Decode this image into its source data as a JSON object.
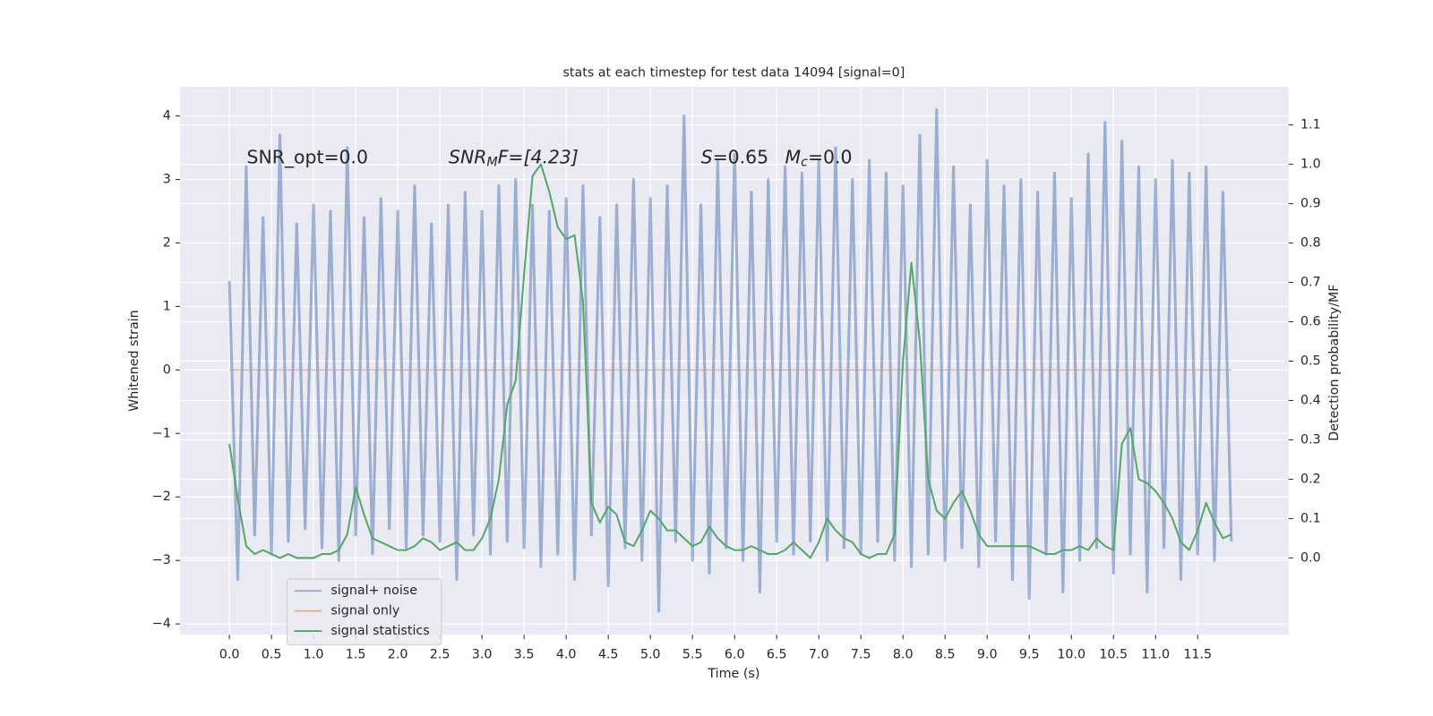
{
  "chart_data": {
    "type": "line",
    "title": "stats at each timestep for test data 14094 [signal=0]",
    "x_label": "Time (s)",
    "y_label": "Whitened strain",
    "y2_label": "Detection probability/MF",
    "annotations": [
      {
        "text": "SNR_opt=0.0"
      },
      {
        "base": "SNR",
        "sub": "M",
        "rest": "F=[4.23]"
      },
      {
        "base": "S",
        "rest": "=0.65"
      },
      {
        "base": "M",
        "sub": "c",
        "rest": "=0.0"
      }
    ],
    "grid": true,
    "legend": "lower left",
    "xlim": [
      -0.586,
      12.58
    ],
    "ylim": [
      -4.17,
      4.46
    ],
    "y2lim": [
      -0.195,
      1.197
    ],
    "xticks": [
      {
        "value": 0,
        "label": "0.0"
      },
      {
        "value": 0.5,
        "label": "0.5"
      },
      {
        "value": 1,
        "label": "1.0"
      },
      {
        "value": 1.5,
        "label": "1.5"
      },
      {
        "value": 2,
        "label": "2.0"
      },
      {
        "value": 2.5,
        "label": "2.5"
      },
      {
        "value": 3,
        "label": "3.0"
      },
      {
        "value": 3.5,
        "label": "3.5"
      },
      {
        "value": 4,
        "label": "4.0"
      },
      {
        "value": 4.5,
        "label": "4.5"
      },
      {
        "value": 5,
        "label": "5.0"
      },
      {
        "value": 5.5,
        "label": "5.5"
      },
      {
        "value": 6,
        "label": "6.0"
      },
      {
        "value": 6.5,
        "label": "6.5"
      },
      {
        "value": 7,
        "label": "7.0"
      },
      {
        "value": 7.5,
        "label": "7.5"
      },
      {
        "value": 8,
        "label": "8.0"
      },
      {
        "value": 8.5,
        "label": "8.5"
      },
      {
        "value": 9,
        "label": "9.0"
      },
      {
        "value": 9.5,
        "label": "9.5"
      },
      {
        "value": 10,
        "label": "10.0"
      },
      {
        "value": 10.5,
        "label": "10.5"
      },
      {
        "value": 11,
        "label": "11.0"
      },
      {
        "value": 11.5,
        "label": "11.5"
      }
    ],
    "yticks": [
      {
        "value": -4,
        "label": "−4"
      },
      {
        "value": -3,
        "label": "−3"
      },
      {
        "value": -2,
        "label": "−2"
      },
      {
        "value": -1,
        "label": "−1"
      },
      0,
      1,
      2,
      3,
      4
    ],
    "y2ticks": [
      {
        "value": 0,
        "label": "0.0"
      },
      {
        "value": 0.1,
        "label": "0.1"
      },
      {
        "value": 0.2,
        "label": "0.2"
      },
      {
        "value": 0.3,
        "label": "0.3"
      },
      {
        "value": 0.4,
        "label": "0.4"
      },
      {
        "value": 0.5,
        "label": "0.5"
      },
      {
        "value": 0.6,
        "label": "0.6"
      },
      {
        "value": 0.7,
        "label": "0.7"
      },
      {
        "value": 0.8,
        "label": "0.8"
      },
      {
        "value": 0.9,
        "label": "0.9"
      },
      {
        "value": 1,
        "label": "1.0"
      },
      {
        "value": 1.1,
        "label": "1.1"
      }
    ],
    "x": [
      0,
      0.1,
      0.2,
      0.3,
      0.4,
      0.5,
      0.6,
      0.7,
      0.8,
      0.9,
      1,
      1.1,
      1.2,
      1.3,
      1.4,
      1.5,
      1.6,
      1.7,
      1.8,
      1.9,
      2,
      2.1,
      2.2,
      2.3,
      2.4,
      2.5,
      2.6,
      2.7,
      2.8,
      2.9,
      3,
      3.1,
      3.2,
      3.3,
      3.4,
      3.5,
      3.6,
      3.7,
      3.8,
      3.9,
      4,
      4.1,
      4.2,
      4.3,
      4.4,
      4.5,
      4.6,
      4.7,
      4.8,
      4.9,
      5,
      5.1,
      5.2,
      5.3,
      5.4,
      5.5,
      5.6,
      5.7,
      5.8,
      5.9,
      6,
      6.1,
      6.2,
      6.3,
      6.4,
      6.5,
      6.6,
      6.7,
      6.8,
      6.9,
      7,
      7.1,
      7.2,
      7.3,
      7.4,
      7.5,
      7.6,
      7.7,
      7.8,
      7.9,
      8,
      8.1,
      8.2,
      8.3,
      8.4,
      8.5,
      8.6,
      8.7,
      8.8,
      8.9,
      9,
      9.1,
      9.2,
      9.3,
      9.4,
      9.5,
      9.6,
      9.7,
      9.8,
      9.9,
      10,
      10.1,
      10.2,
      10.3,
      10.4,
      10.5,
      10.6,
      10.7,
      10.8,
      10.9,
      11,
      11.1,
      11.2,
      11.3,
      11.4,
      11.5,
      11.6,
      11.7,
      11.8,
      11.9
    ],
    "series": [
      {
        "name": "signal+ noise",
        "color": "#4c72b0",
        "values": [
          1.4,
          -3.3,
          3.2,
          -2.6,
          2.4,
          -2.9,
          3.7,
          -2.7,
          2.3,
          -2.5,
          2.6,
          -2.8,
          2.5,
          -3.0,
          3.5,
          -2.6,
          2.4,
          -2.9,
          2.7,
          -2.5,
          2.5,
          -2.8,
          2.9,
          -2.6,
          2.3,
          -2.7,
          2.6,
          -3.3,
          2.8,
          -2.6,
          2.5,
          -2.9,
          2.9,
          -2.7,
          3.0,
          -2.8,
          2.6,
          -3.1,
          2.5,
          -2.9,
          2.7,
          -3.3,
          2.9,
          -2.6,
          2.4,
          -3.4,
          2.6,
          -2.8,
          3.0,
          -3.0,
          2.7,
          -3.8,
          2.9,
          -2.7,
          4.0,
          -3.0,
          2.6,
          -3.2,
          3.3,
          -2.8,
          3.4,
          -3.0,
          2.8,
          -3.5,
          3.0,
          -2.7,
          3.2,
          -2.9,
          3.1,
          -2.7,
          3.3,
          -3.0,
          3.5,
          -2.8,
          3.0,
          -2.9,
          3.3,
          -2.7,
          3.1,
          -3.0,
          2.9,
          -3.1,
          3.7,
          -2.9,
          4.1,
          -3.0,
          3.2,
          -2.8,
          2.6,
          -3.1,
          3.3,
          -2.7,
          2.9,
          -3.3,
          3.0,
          -3.6,
          2.8,
          -2.9,
          3.1,
          -3.5,
          2.7,
          -3.0,
          3.4,
          -2.8,
          3.9,
          -3.2,
          3.6,
          -2.9,
          3.2,
          -3.5,
          3.0,
          -2.8,
          3.3,
          -3.3,
          3.1,
          -2.9,
          3.2,
          -3.0,
          2.8,
          -2.7
        ]
      },
      {
        "name": "signal only",
        "color": "#dd8452",
        "x": [
          0,
          11.9
        ],
        "values": [
          0,
          0
        ]
      },
      {
        "name": "signal statistics",
        "color": "#55a868",
        "axis": "y2",
        "values": [
          0.29,
          0.15,
          0.03,
          0.01,
          0.02,
          0.01,
          0.0,
          0.01,
          0.0,
          0.0,
          0.0,
          0.01,
          0.01,
          0.02,
          0.06,
          0.18,
          0.11,
          0.05,
          0.04,
          0.03,
          0.02,
          0.02,
          0.03,
          0.05,
          0.04,
          0.02,
          0.03,
          0.04,
          0.02,
          0.02,
          0.05,
          0.1,
          0.2,
          0.39,
          0.45,
          0.72,
          0.97,
          1.0,
          0.93,
          0.84,
          0.81,
          0.82,
          0.65,
          0.14,
          0.09,
          0.13,
          0.11,
          0.04,
          0.03,
          0.07,
          0.12,
          0.1,
          0.07,
          0.07,
          0.05,
          0.03,
          0.04,
          0.08,
          0.05,
          0.03,
          0.02,
          0.02,
          0.03,
          0.02,
          0.01,
          0.01,
          0.02,
          0.04,
          0.02,
          0.0,
          0.04,
          0.1,
          0.07,
          0.05,
          0.04,
          0.01,
          0.0,
          0.01,
          0.01,
          0.06,
          0.5,
          0.75,
          0.55,
          0.2,
          0.12,
          0.1,
          0.14,
          0.17,
          0.12,
          0.06,
          0.03,
          0.03,
          0.03,
          0.03,
          0.03,
          0.03,
          0.02,
          0.01,
          0.01,
          0.02,
          0.02,
          0.03,
          0.02,
          0.05,
          0.03,
          0.02,
          0.29,
          0.33,
          0.2,
          0.19,
          0.17,
          0.14,
          0.1,
          0.04,
          0.02,
          0.07,
          0.14,
          0.09,
          0.05,
          0.06
        ]
      }
    ]
  }
}
